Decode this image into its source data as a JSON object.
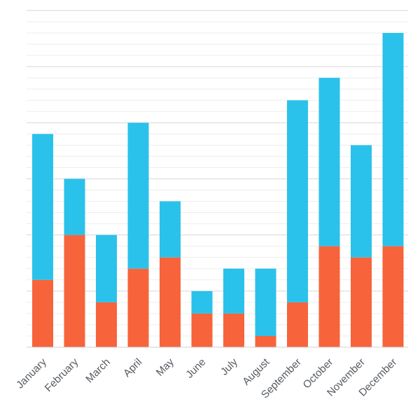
{
  "chart_data": {
    "type": "bar",
    "stacked": true,
    "categories": [
      "January",
      "February",
      "March",
      "April",
      "May",
      "June",
      "July",
      "August",
      "September",
      "October",
      "November",
      "December"
    ],
    "series": [
      {
        "values": [
          6,
          10,
          4,
          7,
          8,
          3,
          3,
          1,
          4,
          9,
          8,
          9
        ]
      },
      {
        "values": [
          13,
          5,
          6,
          13,
          5,
          2,
          4,
          6,
          18,
          15,
          10,
          19
        ]
      }
    ],
    "ylim": [
      0,
      30
    ],
    "grid": true,
    "legend": "none",
    "colors": {
      "series": [
        "#f7643b",
        "#2ac2ea"
      ],
      "major_grid": "#d7d7d7",
      "minor_grid": "#ededed",
      "axis": "#d0d0d0",
      "tick_label": "#555b63"
    }
  }
}
